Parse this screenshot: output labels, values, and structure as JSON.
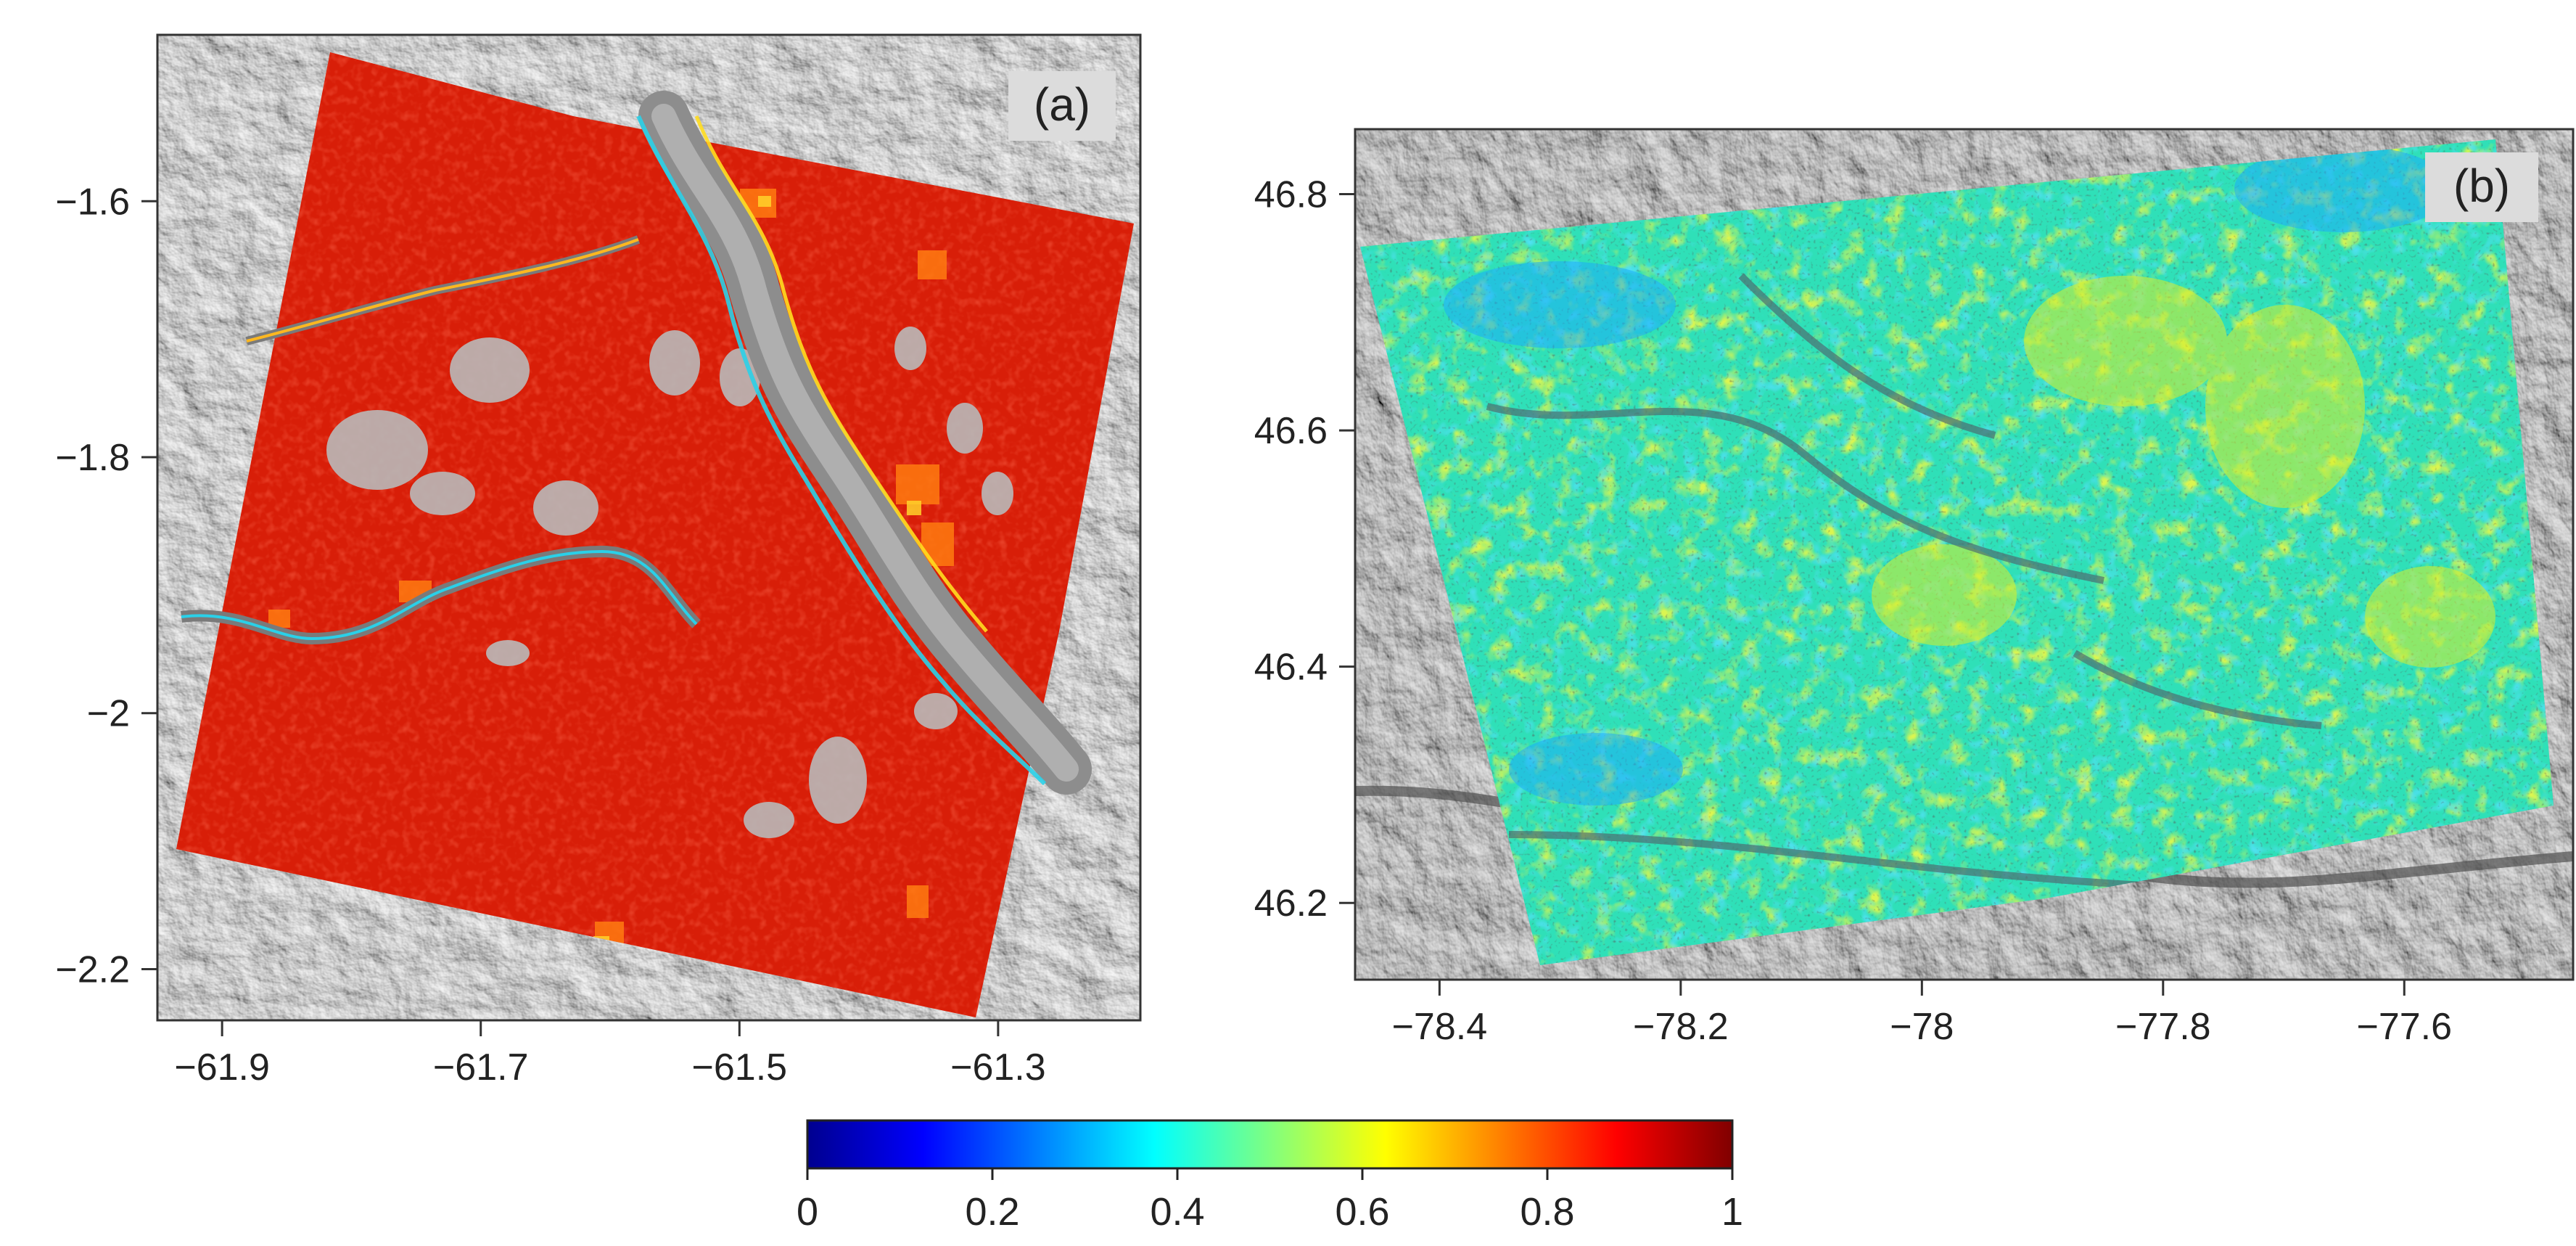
{
  "panels": [
    {
      "label": "(a)",
      "x_ticks": [
        "−61.9",
        "−61.7",
        "−61.5",
        "−61.3"
      ],
      "x_tick_values": [
        -61.9,
        -61.7,
        -61.5,
        -61.3
      ],
      "x_range": [
        -61.95,
        -61.19
      ],
      "y_ticks": [
        "−1.6",
        "−1.8",
        "−2",
        "−2.2"
      ],
      "y_tick_values": [
        -1.6,
        -1.8,
        -2.0,
        -2.2
      ],
      "y_range": [
        -2.24,
        -1.47
      ],
      "overlay_color": "#d81e08",
      "background": "grey hillshade terrain"
    },
    {
      "label": "(b)",
      "x_ticks": [
        "−78.4",
        "−78.2",
        "−78",
        "−77.8",
        "−77.6"
      ],
      "x_tick_values": [
        -78.4,
        -78.2,
        -78.0,
        -77.8,
        -77.6
      ],
      "x_range": [
        -78.47,
        -77.46
      ],
      "y_ticks": [
        "46.8",
        "46.6",
        "46.4",
        "46.2"
      ],
      "y_tick_values": [
        46.8,
        46.6,
        46.4,
        46.2
      ],
      "y_range": [
        46.135,
        46.855
      ],
      "overlay_color": "#2fe0b8",
      "background": "grey hillshade terrain"
    }
  ],
  "colorbar": {
    "ticks": [
      "0",
      "0.2",
      "0.4",
      "0.6",
      "0.8",
      "1"
    ],
    "tick_values": [
      0,
      0.2,
      0.4,
      0.6,
      0.8,
      1
    ],
    "range": [
      0,
      1
    ],
    "colormap": "jet",
    "stops": [
      "#00008f",
      "#0000ff",
      "#00ffff",
      "#ffff00",
      "#ff0000",
      "#800000"
    ]
  }
}
